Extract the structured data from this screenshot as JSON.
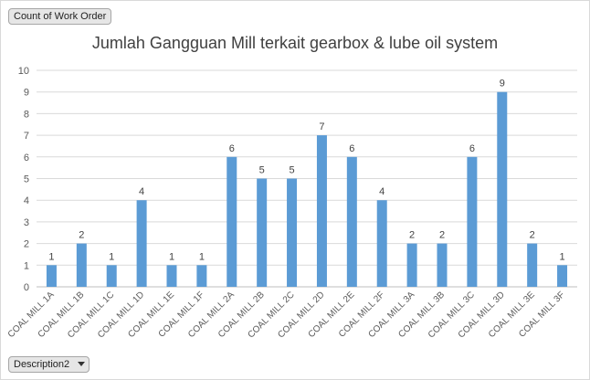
{
  "pivot": {
    "values_button": "Count of Work Order",
    "axis_button": "Description2"
  },
  "chart_data": {
    "type": "bar",
    "title": "Jumlah Gangguan Mill terkait gearbox & lube oil system",
    "categories": [
      "COAL MILL 1A",
      "COAL MILL 1B",
      "COAL MILL 1C",
      "COAL MILL 1D",
      "COAL MILL 1E",
      "COAL MILL 1F",
      "COAL MILL 2A",
      "COAL MILL 2B",
      "COAL MILL 2C",
      "COAL MILL 2D",
      "COAL MILL 2E",
      "COAL MILL 2F",
      "COAL MILL 3A",
      "COAL MILL 3B",
      "COAL MILL 3C",
      "COAL MILL 3D",
      "COAL MILL 3E",
      "COAL MILL 3F"
    ],
    "values": [
      1,
      2,
      1,
      4,
      1,
      1,
      6,
      5,
      5,
      7,
      6,
      4,
      2,
      2,
      6,
      9,
      2,
      1
    ],
    "yticks": [
      "0",
      "1",
      "2",
      "3",
      "4",
      "5",
      "6",
      "7",
      "8",
      "9",
      "10"
    ],
    "ylim": [
      0,
      10
    ],
    "grid": true,
    "bar_color": "#5b9bd5",
    "grid_color": "#d9d9d9"
  }
}
